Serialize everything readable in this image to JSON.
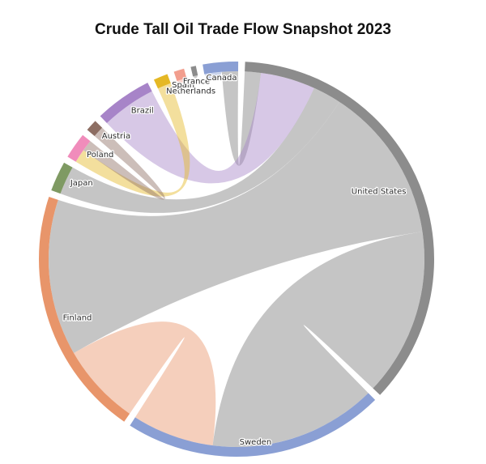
{
  "chart_data": {
    "type": "chord",
    "title": "Crude Tall Oil Trade Flow Snapshot 2023",
    "nodes": [
      {
        "name": "United States",
        "color": "#8c8c8c"
      },
      {
        "name": "Sweden",
        "color": "#8a9fd4"
      },
      {
        "name": "Finland",
        "color": "#e8956a"
      },
      {
        "name": "Japan",
        "color": "#7f9a63"
      },
      {
        "name": "Poland",
        "color": "#f08cbb"
      },
      {
        "name": "Austria",
        "color": "#8d6e63"
      },
      {
        "name": "Brazil",
        "color": "#a784c8"
      },
      {
        "name": "Netherlands",
        "color": "#e5b825"
      },
      {
        "name": "Spain",
        "color": "#f29e8e"
      },
      {
        "name": "France",
        "color": "#8c8c8c"
      },
      {
        "name": "Canada",
        "color": "#8a9fd4"
      }
    ],
    "flows": [
      {
        "source": "United States",
        "target": "Finland",
        "value": 126
      },
      {
        "source": "United States",
        "target": "Japan",
        "value": 23
      },
      {
        "source": "United States",
        "target": "Sweden",
        "value": 135
      },
      {
        "source": "United States",
        "target": "Canada",
        "value": 13
      },
      {
        "source": "Finland",
        "target": "Sweden",
        "value": 66
      },
      {
        "source": "Brazil",
        "target": "United States",
        "value": 44
      },
      {
        "source": "Netherlands",
        "target": "Poland",
        "value": 11
      },
      {
        "source": "Austria",
        "target": "Poland",
        "value": 9
      },
      {
        "source": "Spain",
        "target": "Spain",
        "value": 4
      },
      {
        "source": "Canada",
        "target": "Canada",
        "value": 7
      },
      {
        "source": "France",
        "target": "France",
        "value": 2
      }
    ]
  }
}
